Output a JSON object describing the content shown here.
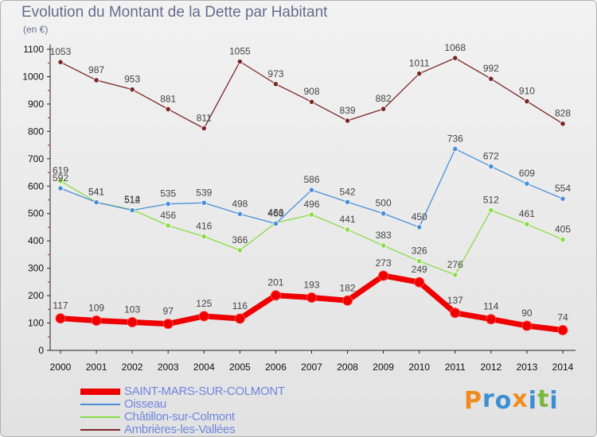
{
  "title": "Evolution du Montant de la Dette par Habitant",
  "unit": "(en €)",
  "logo": {
    "letters": [
      "P",
      "r",
      "o",
      "x",
      "i",
      "t",
      "i"
    ],
    "colors": [
      "#f08c1e",
      "#3c8fd4",
      "#3c8fd4",
      "#f08c1e",
      "#3c8fd4",
      "#78b83c",
      "#3c8fd4"
    ]
  },
  "chart_data": {
    "type": "line",
    "title": "Evolution du Montant de la Dette par Habitant",
    "ylabel": "(en €)",
    "xlabel": "",
    "ylim": [
      0,
      1100
    ],
    "yticks": [
      0,
      100,
      200,
      300,
      400,
      500,
      600,
      700,
      800,
      900,
      1000,
      1100
    ],
    "categories": [
      "2000",
      "2001",
      "2002",
      "2003",
      "2004",
      "2005",
      "2006",
      "2007",
      "2008",
      "2009",
      "2010",
      "2011",
      "2012",
      "2013",
      "2014"
    ],
    "series": [
      {
        "name": "SAINT-MARS-SUR-COLMONT",
        "color": "#ee0000",
        "values": [
          117,
          109,
          103,
          97,
          125,
          116,
          201,
          193,
          182,
          273,
          249,
          137,
          114,
          90,
          74
        ]
      },
      {
        "name": "Oisseau",
        "color": "#4a8fd8",
        "values": [
          592,
          541,
          512,
          535,
          539,
          498,
          463,
          586,
          542,
          500,
          450,
          736,
          672,
          609,
          554
        ]
      },
      {
        "name": "Châtillon-sur-Colmont",
        "color": "#88dd44",
        "values": [
          619,
          541,
          514,
          456,
          416,
          366,
          466,
          496,
          441,
          383,
          326,
          276,
          512,
          461,
          405
        ]
      },
      {
        "name": "Ambrières-les-Vallées",
        "color": "#7a2626",
        "values": [
          1053,
          987,
          953,
          881,
          811,
          1055,
          973,
          908,
          839,
          882,
          1011,
          1068,
          992,
          910,
          828
        ]
      }
    ],
    "legend_position": "bottom-left",
    "grid": false
  }
}
